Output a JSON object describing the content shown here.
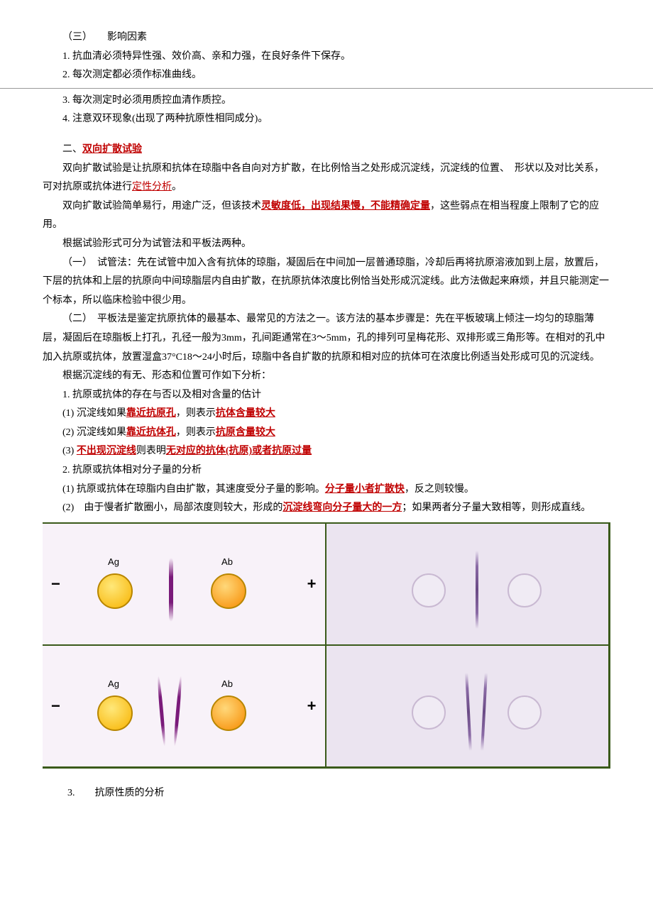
{
  "s1": {
    "h": "（三）　　影响因素",
    "p1": "1. 抗血清必须特异性强、效价高、亲和力强，在良好条件下保存。",
    "p2": "2. 每次测定都必须作标准曲线。",
    "p3": "3. 每次测定时必须用质控血清作质控。",
    "p4": "4. 注意双环现象(出现了两种抗原性相同成分)。"
  },
  "s2": {
    "title_pre": "二、",
    "title_link": "双向扩散试验",
    "p1a": "双向扩散试验是让抗原和抗体在琼脂中各自向对方扩散，在比例恰当之处形成沉淀线，沉淀线的位置、　形状以及对比关系，可对抗原或抗体进行",
    "p1b_link": "定性分析",
    "p1c": "。",
    "p2a": "双向扩散试验简单易行，用途广泛，但该技术",
    "p2b_link": "灵敏度低，出现结果慢，不能精确定量",
    "p2c": "，这些弱点在相当程度上限制了它的应用。",
    "p3": "根据试验形式可分为试管法和平板法两种。",
    "p4": "（一）　试管法：先在试管中加入含有抗体的琼脂，凝固后在中间加一层普通琼脂，冷却后再将抗原溶液加到上层，放置后，下层的抗体和上层的抗原向中间琼脂层内自由扩散，在抗原抗体浓度比例恰当处形成沉淀线。此方法做起来麻烦，并且只能测定一个标本，所以临床检验中很少用。",
    "p5": "（二）　平板法是鉴定抗原抗体的最基本、最常见的方法之一。该方法的基本步骤是：先在平板玻璃上倾注一均匀的琼脂薄层，凝固后在琼脂板上打孔，孔径一般为3mm，孔间距通常在3～5mm，孔的排列可呈梅花形、双排形或三角形等。在相对的孔中加入抗原或抗体，放置湿盒37°C18～24小时后，琼脂中各自扩散的抗原和相对应的抗体可在浓度比例适当处形成可见的沉淀线。",
    "p6": "根据沉淀线的有无、形态和位置可作如下分析：",
    "h1": "1. 抗原或抗体的存在与否以及相对含量的估计",
    "r1a": "(1) 沉淀线如果",
    "r1b": "靠近抗原孔",
    "r1c": "，则表示",
    "r1d": "抗体含量较大",
    "r2a": "(2) 沉淀线如果",
    "r2b": "靠近抗体孔",
    "r2c": "，则表示",
    "r2d": "抗原含量较大",
    "r3a": "(3) ",
    "r3b": "不出现沉淀线",
    "r3c": "则表明",
    "r3d": "无对应的抗体(抗原)或者抗原过量",
    "h2": "2. 抗原或抗体相对分子量的分析",
    "m1a": "(1) 抗原或抗体在琼脂内自由扩散，其速度受分子量的影响。",
    "m1b": "分子量小者扩散快",
    "m1c": "，反之则较慢。",
    "m2a": "(2)　由于慢者扩散圈小，局部浓度则较大，形成的",
    "m2b": "沉淀线弯向分子量大的一方",
    "m2c": "；如果两者分子量大致相等，则形成直线。"
  },
  "diagram": {
    "ag": "Ag",
    "ab": "Ab",
    "minus": "−",
    "plus": "+",
    "colors": {
      "left_bg": "#f8f2f9",
      "right_bg": "#ebe4f0",
      "border": "#3a5a1a",
      "ag_fill": "#f7b200",
      "ab_fill": "#f78a00",
      "precip": "#7a1a7a",
      "photo_line": "#8a6aa5"
    }
  },
  "s3": {
    "h3": "3.　　抗原性质的分析"
  }
}
